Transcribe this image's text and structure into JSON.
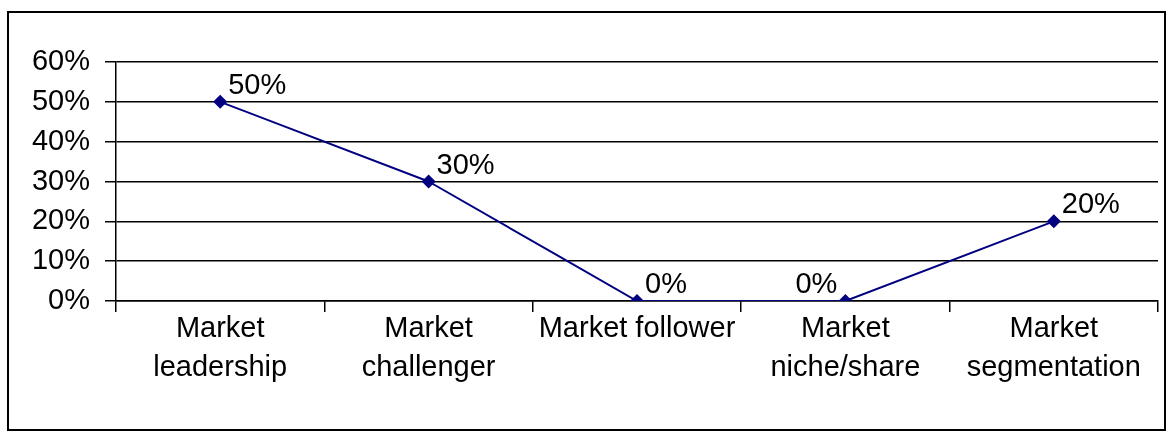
{
  "chart_data": {
    "type": "line",
    "categories": [
      "Market leadership",
      "Market challenger",
      "Market follower",
      "Market niche/share",
      "Market segmentation"
    ],
    "series": [
      {
        "color": "#000080",
        "values": [
          50,
          30,
          0,
          0,
          20
        ],
        "value_labels": [
          "50%",
          "30%",
          "0%",
          "0%",
          "20%"
        ]
      }
    ],
    "ylim": [
      0,
      60
    ],
    "yticks": [
      {
        "value": 0,
        "label": "0%"
      },
      {
        "value": 10,
        "label": "10%"
      },
      {
        "value": 20,
        "label": "20%"
      },
      {
        "value": 30,
        "label": "30%"
      },
      {
        "value": 40,
        "label": "40%"
      },
      {
        "value": 50,
        "label": "50%"
      },
      {
        "value": 60,
        "label": "60%"
      }
    ],
    "grid": "y",
    "marker": "diamond",
    "line_style": "solid"
  }
}
